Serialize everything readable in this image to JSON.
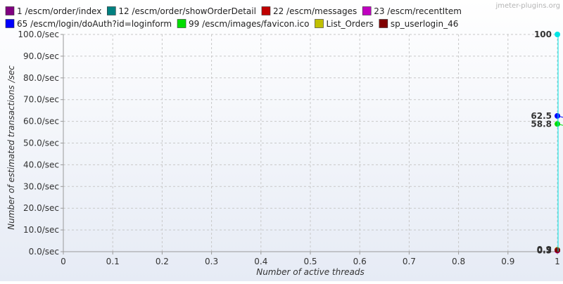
{
  "watermark": "jmeter-plugins.org",
  "colors": {
    "background_top": "#ffffff",
    "background_bottom": "#e6ebf5",
    "grid": "#c8c8c8",
    "axis": "#999999",
    "text": "#333333"
  },
  "chart_data": {
    "type": "line",
    "title": "",
    "xlabel": "Number of active threads",
    "ylabel": "Number of estimated transactions /sec",
    "xlim": [
      0,
      1
    ],
    "ylim": [
      0,
      100
    ],
    "x_ticks": [
      "0",
      "0.1",
      "0.2",
      "0.3",
      "0.4",
      "0.5",
      "0.6",
      "0.7",
      "0.8",
      "0.9",
      "1"
    ],
    "y_ticks": [
      "0.0/sec",
      "10.0/sec",
      "20.0/sec",
      "30.0/sec",
      "40.0/sec",
      "50.0/sec",
      "60.0/sec",
      "70.0/sec",
      "80.0/sec",
      "90.0/sec",
      "100.0/sec"
    ],
    "grid": true,
    "legend_position": "top",
    "series": [
      {
        "name": "1 /escm/order/index",
        "color": "#800080",
        "points": [
          [
            1,
            0.5
          ]
        ]
      },
      {
        "name": "12 /escm/order/showOrderDetail",
        "color": "#008080",
        "points": [
          [
            1,
            0.7
          ]
        ]
      },
      {
        "name": "22 /escm/messages",
        "color": "#c00000",
        "points": [
          [
            1,
            0.6
          ]
        ]
      },
      {
        "name": "23 /escm/recentItem",
        "color": "#c000c0",
        "points": [
          [
            1,
            0.5
          ]
        ]
      },
      {
        "name": "65 /escm/login/doAuth?id=loginform",
        "color": "#0000ff",
        "points": [
          [
            1,
            62.5
          ]
        ]
      },
      {
        "name": "99 /escm/images/favicon.ico",
        "color": "#00dd00",
        "points": [
          [
            1,
            58.8
          ]
        ]
      },
      {
        "name": "List_Orders",
        "color": "#c0c000",
        "points": [
          [
            1,
            0.9
          ]
        ]
      },
      {
        "name": "sp_userlogin_46",
        "color": "#800000",
        "points": [
          [
            1,
            0.7
          ]
        ]
      },
      {
        "name": "",
        "color": "#00e5e5",
        "points": [
          [
            1,
            100
          ]
        ]
      }
    ],
    "data_labels": [
      {
        "text": "100",
        "y": 100
      },
      {
        "text": "62.5",
        "y": 62.5
      },
      {
        "text": "58.8",
        "y": 58.8
      },
      {
        "text": "0.9",
        "y": 0.9
      },
      {
        "text": "0.7",
        "y": 0.7
      },
      {
        "text": "0.5",
        "y": 0.5
      }
    ]
  }
}
